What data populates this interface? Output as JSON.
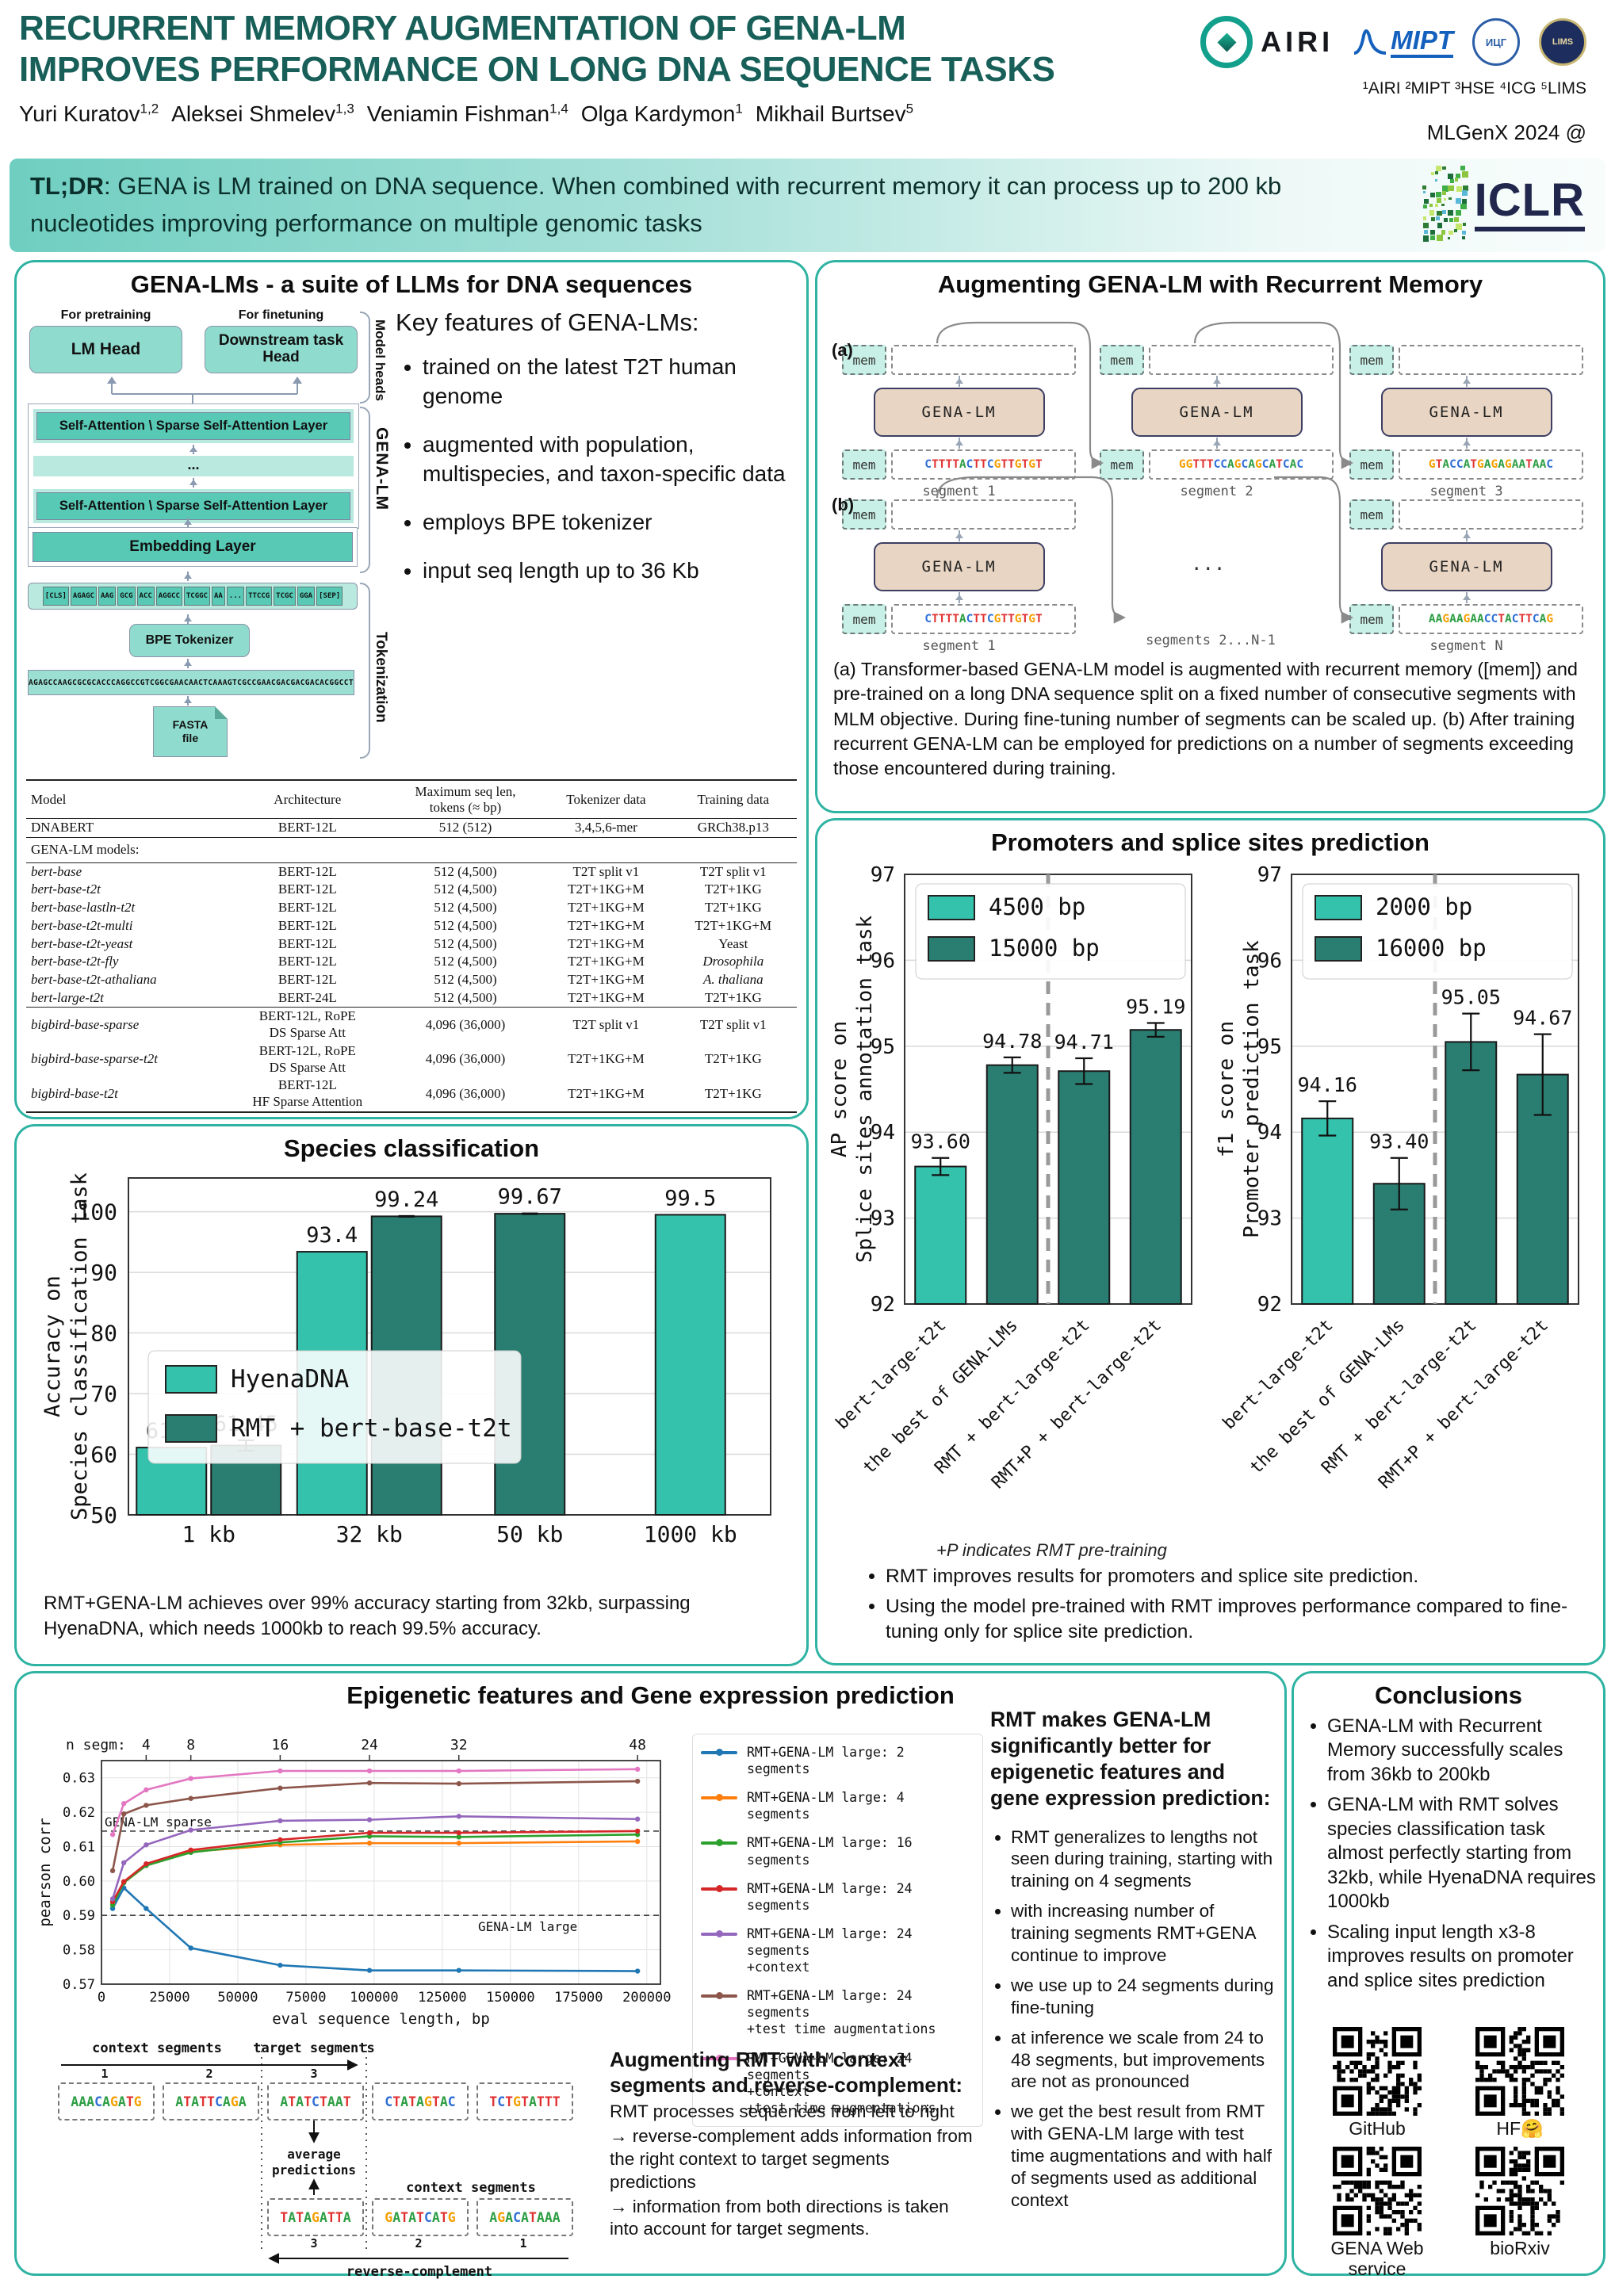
{
  "colors": {
    "accent_teal": "#2fb3a2",
    "title_teal": "#175f58",
    "bar_light": "#35c2ac",
    "bar_dark": "#2a7d71",
    "dna": {
      "A": "#2e9e44",
      "T": "#e03131",
      "G": "#f59f00",
      "C": "#2f6fd6"
    }
  },
  "header": {
    "title_line1": "RECURRENT MEMORY AUGMENTATION OF GENA-LM",
    "title_line2": "IMPROVES PERFORMANCE ON LONG DNA SEQUENCE TASKS",
    "authors": [
      {
        "name": "Yuri Kuratov",
        "sup": "1,2"
      },
      {
        "name": "Aleksei Shmelev",
        "sup": "1,3"
      },
      {
        "name": "Veniamin Fishman",
        "sup": "1,4"
      },
      {
        "name": "Olga Kardymon",
        "sup": "1"
      },
      {
        "name": "Mikhail Burtsev",
        "sup": "5"
      }
    ],
    "affiliations": "¹AIRI ²MIPT ³HSE ⁴ICG ⁵LIMS",
    "venue": "MLGenX 2024 @",
    "logos": {
      "airi": "AIRI",
      "mipt": "MIPT",
      "icg": "ИЦГ",
      "lims": "LIMS"
    }
  },
  "tldr": {
    "label": "TL;DR",
    "text": ": GENA is LM trained on DNA sequence. When combined with recurrent memory it can process up to 200 kb nucleotides improving performance on multiple genomic tasks",
    "iclr_label": "ICLR"
  },
  "gena_panel": {
    "title": "GENA-LMs - a suite of LLMs for DNA sequences",
    "diagram": {
      "pretraining_label": "For pretraining",
      "finetuning_label": "For finetuning",
      "lm_head": "LM Head",
      "downstream_head": "Downstream task Head",
      "model_heads_label": "Model heads",
      "attention_layer": "Self-Attention \\ Sparse Self-Attention Layer",
      "ellipsis": "...",
      "gena_lm_label": "GENA-LM",
      "embedding_layer": "Embedding Layer",
      "tokens": [
        "[CLS]",
        "AGAGC",
        "AAG",
        "GCG",
        "ACC",
        "AGGCC",
        "TCGGC",
        "AA",
        "...",
        "TTCCG",
        "TCGC",
        "GGA",
        "[SEP]"
      ],
      "bpe_tokenizer": "BPE Tokenizer",
      "raw_sequence": "AGAGCCAAGCGCGCACCCAGGCCGTCGGCGAACAACTCAAAGTCGCCGAACGACGACGACACGGCCT",
      "fasta_file_line1": "FASTA",
      "fasta_file_line2": "file",
      "tokenization_label": "Tokenization"
    },
    "key_features_title": "Key features of GENA-LMs:",
    "key_features": [
      "trained on the latest T2T human genome",
      "augmented with population, multispecies, and taxon-specific data",
      "employs BPE tokenizer",
      "input seq length up to 36 Kb"
    ],
    "table": {
      "headers": [
        "Model",
        "Architecture",
        "Maximum seq len,\ntokens (≈ bp)",
        "Tokenizer data",
        "Training data"
      ],
      "dnabert_row": {
        "m": "DNABERT",
        "a": "BERT-12L",
        "l": "512 (512)",
        "tk": "3,4,5,6-mer",
        "tr": "GRCh38.p13"
      },
      "section_label": "GENA-LM models:",
      "bert_rows": [
        {
          "m": "bert-base",
          "a": "BERT-12L",
          "l": "512 (4,500)",
          "tk": "T2T split v1",
          "tr": "T2T split v1"
        },
        {
          "m": "bert-base-t2t",
          "a": "BERT-12L",
          "l": "512 (4,500)",
          "tk": "T2T+1KG+M",
          "tr": "T2T+1KG"
        },
        {
          "m": "bert-base-lastln-t2t",
          "a": "BERT-12L",
          "l": "512 (4,500)",
          "tk": "T2T+1KG+M",
          "tr": "T2T+1KG"
        },
        {
          "m": "bert-base-t2t-multi",
          "a": "BERT-12L",
          "l": "512 (4,500)",
          "tk": "T2T+1KG+M",
          "tr": "T2T+1KG+M"
        },
        {
          "m": "bert-base-t2t-yeast",
          "a": "BERT-12L",
          "l": "512 (4,500)",
          "tk": "T2T+1KG+M",
          "tr": "Yeast"
        },
        {
          "m": "bert-base-t2t-fly",
          "a": "BERT-12L",
          "l": "512 (4,500)",
          "tk": "T2T+1KG+M",
          "tr": "Drosophila",
          "itr": true
        },
        {
          "m": "bert-base-t2t-athaliana",
          "a": "BERT-12L",
          "l": "512 (4,500)",
          "tk": "T2T+1KG+M",
          "tr": "A. thaliana",
          "itr": true
        },
        {
          "m": "bert-large-t2t",
          "a": "BERT-24L",
          "l": "512 (4,500)",
          "tk": "T2T+1KG+M",
          "tr": "T2T+1KG"
        }
      ],
      "bigbird_rows": [
        {
          "m": "bigbird-base-sparse",
          "a": "BERT-12L, RoPE\nDS Sparse Att",
          "l": "4,096 (36,000)",
          "tk": "T2T split v1",
          "tr": "T2T split v1"
        },
        {
          "m": "bigbird-base-sparse-t2t",
          "a": "BERT-12L, RoPE\nDS Sparse Att",
          "l": "4,096 (36,000)",
          "tk": "T2T+1KG+M",
          "tr": "T2T+1KG"
        },
        {
          "m": "bigbird-base-t2t",
          "a": "BERT-12L\nHF Sparse Attention",
          "l": "4,096 (36,000)",
          "tk": "T2T+1KG+M",
          "tr": "T2T+1KG"
        }
      ]
    }
  },
  "rmt_panel": {
    "title": "Augmenting GENA-LM with Recurrent Memory",
    "label_a": "(a)",
    "label_b": "(b)",
    "mem_label": "mem",
    "model_label": "GENA-LM",
    "row_a": [
      {
        "seq": "CTTTTACTTCGTTGTGT",
        "label": "segment 1"
      },
      {
        "seq": "GGTTTCCAGCAGCATCAC",
        "label": "segment 2"
      },
      {
        "seq": "GTACCATGAGAGAATAAC",
        "label": "segment 3"
      }
    ],
    "row_b": [
      {
        "seq": "CTTTTACTTCGTTGTGT",
        "label": "segment 1"
      },
      {
        "seq": "AAGAAGAACCTACTTCAG",
        "label": "segment N"
      }
    ],
    "row_b_middle": {
      "dots": "...",
      "label": "segments 2...N-1"
    },
    "caption": "(a) Transformer-based GENA-LM model is augmented with recurrent memory ([mem]) and pre-trained on a long DNA sequence split on a fixed number of consecutive segments with MLM objective. During fine-tuning number of segments can be scaled up. (b) After training recurrent GENA-LM can be employed for predictions on a number of segments exceeding those encountered during training."
  },
  "species_panel": {
    "title": "Species classification",
    "caption": "RMT+GENA-LM achieves over 99% accuracy starting from 32kb, surpassing HyenaDNA, which needs 1000kb to reach 99.5% accuracy."
  },
  "promoters_panel": {
    "title": "Promoters and splice sites prediction",
    "footnote": "+P indicates RMT pre-training",
    "bullets": [
      "RMT improves results for promoters and splice site prediction.",
      "Using the model pre-trained with RMT improves performance compared to fine-tuning only for splice site prediction."
    ]
  },
  "epigenetic_panel": {
    "title": "Epigenetic features and Gene expression prediction",
    "side_heading": "RMT makes GENA-LM significantly better for epigenetic features and gene expression prediction:",
    "side_bullets": [
      "RMT generalizes to lengths not seen during training, starting with training on 4 segments",
      "with increasing number of training segments RMT+GENA continue to improve",
      "we use up to 24 segments during fine-tuning",
      "at inference we scale from 24 to 48 segments, but improvements are not as pronounced",
      "we get the best result from RMT with GENA-LM large with test time augmentations and with half of segments used as additional context"
    ],
    "augment_heading": "Augmenting RMT with context segments and reverse-complement:",
    "augment_lines": [
      "RMT processes sequences from left to right",
      "→ reverse-complement adds information from the right context to target segments predictions",
      "→ information from both directions is taken into account for target segments."
    ],
    "diagram": {
      "context_label": "context segments",
      "target_label": "target segments",
      "top_boxes": [
        {
          "num": "1",
          "seq": "AAACAGATG"
        },
        {
          "num": "2",
          "seq": "ATATTCAGA"
        },
        {
          "num": "3",
          "seq": "ATATCTAAT"
        },
        {
          "num": "",
          "seq": "CTATAGTAC"
        },
        {
          "num": "",
          "seq": "TCTGTATTT"
        }
      ],
      "average_label_line1": "average",
      "average_label_line2": "predictions",
      "bottom_boxes": [
        {
          "num": "3",
          "seq": "TATAGATTA"
        },
        {
          "num": "2",
          "seq": "GATATCATG"
        },
        {
          "num": "1",
          "seq": "AGACATAAA"
        }
      ],
      "bottom_context_label": "context segments",
      "reverse_label": "reverse-complement"
    }
  },
  "conclusions_panel": {
    "title": "Conclusions",
    "bullets": [
      "GENA-LM with Recurrent Memory successfully scales from 36kb to 200kb",
      "GENA-LM with RMT solves species classification task almost perfectly starting from 32kb, while HyenaDNA requires 1000kb",
      "Scaling input length x3-8 improves results on promoter and splice sites prediction"
    ],
    "qr_items": [
      {
        "label": "GitHub"
      },
      {
        "label": "HF🤗"
      },
      {
        "label": "GENA Web service"
      },
      {
        "label": "bioRxiv"
      }
    ]
  },
  "chart_data": [
    {
      "id": "species-classification",
      "type": "bar",
      "title": "Species classification",
      "ylabel_lines": [
        "Accuracy on",
        "Species classification task"
      ],
      "ylim": [
        50,
        104
      ],
      "yticks": [
        50,
        60,
        70,
        80,
        90,
        100
      ],
      "categories": [
        "1 kb",
        "32 kb",
        "50 kb",
        "1000 kb"
      ],
      "series": [
        {
          "name": "HyenaDNA",
          "color": "#35c2ac",
          "values": [
            61.1,
            93.4,
            null,
            99.5
          ],
          "labels": [
            "61.1",
            "93.4",
            null,
            "99.5"
          ],
          "errors": [
            null,
            null,
            null,
            null
          ]
        },
        {
          "name": "RMT + bert-base-t2t",
          "color": "#2a7d71",
          "values": [
            61.45,
            99.24,
            99.67,
            null
          ],
          "labels": [
            "61.45",
            "99.24",
            "99.67",
            null
          ],
          "errors": [
            0.85,
            0.06,
            0.05,
            null
          ]
        }
      ],
      "grid": true,
      "legend_position": "middle-left"
    },
    {
      "id": "splice-sites-ap",
      "type": "bar",
      "ylabel_lines": [
        "AP score on",
        "Splice sites annotation task"
      ],
      "ylim": [
        92,
        97
      ],
      "yticks": [
        92,
        93,
        94,
        95,
        96,
        97
      ],
      "categories": [
        "bert-large-t2t",
        "the best of GENA-LMs",
        "RMT + bert-large-t2t",
        "RMT+P + bert-large-t2t"
      ],
      "values": [
        93.6,
        94.78,
        94.71,
        95.19
      ],
      "labels": [
        "93.60",
        "94.78",
        "94.71",
        "95.19"
      ],
      "errors": [
        0.1,
        0.09,
        0.15,
        0.08
      ],
      "bar_colors_key": [
        "short",
        "long",
        "long",
        "long"
      ],
      "colors": {
        "short": "#35c2ac",
        "long": "#2a7d71"
      },
      "legend": [
        {
          "label": "4500 bp",
          "key": "short"
        },
        {
          "label": "15000 bp",
          "key": "long"
        }
      ],
      "divider_after_index": 1
    },
    {
      "id": "promoter-f1",
      "type": "bar",
      "ylabel_lines": [
        "f1 score on",
        "Promoter prediction task"
      ],
      "ylim": [
        92,
        97
      ],
      "yticks": [
        92,
        93,
        94,
        95,
        96,
        97
      ],
      "categories": [
        "bert-large-t2t",
        "the best of GENA-LMs",
        "RMT + bert-large-t2t",
        "RMT+P + bert-large-t2t"
      ],
      "values": [
        94.16,
        93.4,
        95.05,
        94.67
      ],
      "labels": [
        "94.16",
        "93.40",
        "95.05",
        "94.67"
      ],
      "errors": [
        0.2,
        0.3,
        0.33,
        0.47
      ],
      "bar_colors_key": [
        "short",
        "long",
        "long",
        "long"
      ],
      "colors": {
        "short": "#35c2ac",
        "long": "#2a7d71"
      },
      "legend": [
        {
          "label": "2000 bp",
          "key": "short"
        },
        {
          "label": "16000 bp",
          "key": "long"
        }
      ],
      "divider_after_index": 1
    },
    {
      "id": "epigenetic-gene-expression",
      "type": "line",
      "xlabel": "eval sequence length, bp",
      "ylabel": "pearson corr",
      "xlim": [
        0,
        205000
      ],
      "ylim": [
        0.57,
        0.635
      ],
      "yticks": [
        0.57,
        0.58,
        0.59,
        0.6,
        0.61,
        0.62,
        0.63
      ],
      "xticks": [
        0,
        25000,
        50000,
        75000,
        100000,
        125000,
        150000,
        175000,
        200000
      ],
      "top_axis_prefix": "n segm:",
      "top_ticks": [
        {
          "label": "4",
          "x": 16384
        },
        {
          "label": "8",
          "x": 32768
        },
        {
          "label": "16",
          "x": 65536
        },
        {
          "label": "24",
          "x": 98304
        },
        {
          "label": "32",
          "x": 131072
        },
        {
          "label": "48",
          "x": 196608
        }
      ],
      "x": [
        4096,
        8192,
        16384,
        32768,
        65536,
        98304,
        131072,
        196608
      ],
      "series": [
        {
          "name": "RMT+GENA-LM large: 2 segments",
          "color": "#1f77b4",
          "values": [
            0.592,
            0.598,
            0.592,
            0.5805,
            0.5755,
            0.574,
            0.574,
            0.5738
          ]
        },
        {
          "name": "RMT+GENA-LM large: 4 segments",
          "color": "#ff7f0e",
          "values": [
            0.5935,
            0.5995,
            0.6045,
            0.6085,
            0.6105,
            0.611,
            0.611,
            0.6115
          ]
        },
        {
          "name": "RMT+GENA-LM large: 16 segments",
          "color": "#2ca02c",
          "values": [
            0.593,
            0.5995,
            0.6045,
            0.6083,
            0.6112,
            0.613,
            0.6128,
            0.6135
          ]
        },
        {
          "name": "RMT+GENA-LM large: 24 segments",
          "color": "#d62728",
          "values": [
            0.594,
            0.5998,
            0.605,
            0.609,
            0.612,
            0.614,
            0.614,
            0.6145
          ]
        },
        {
          "name": "RMT+GENA-LM large: 24 segments\n+context",
          "color": "#9467bd",
          "values": [
            0.5948,
            0.6053,
            0.6105,
            0.6148,
            0.6175,
            0.6178,
            0.6188,
            0.618
          ]
        },
        {
          "name": "RMT+GENA-LM large: 24 segments\n+test time augmentations",
          "color": "#8c564b",
          "values": [
            0.603,
            0.6195,
            0.622,
            0.624,
            0.627,
            0.6285,
            0.6283,
            0.629
          ]
        },
        {
          "name": "RMT+GENA-LM large: 24 segments\n+context\n+test time augmentations",
          "color": "#e377c2",
          "values": [
            0.6135,
            0.6225,
            0.6265,
            0.6298,
            0.632,
            0.632,
            0.632,
            0.6325
          ]
        }
      ],
      "hlines": [
        {
          "label": "GENA-LM sparse",
          "y": 0.6145,
          "anchor": "left"
        },
        {
          "label": "GENA-LM large",
          "y": 0.59,
          "anchor": "right"
        }
      ]
    }
  ]
}
